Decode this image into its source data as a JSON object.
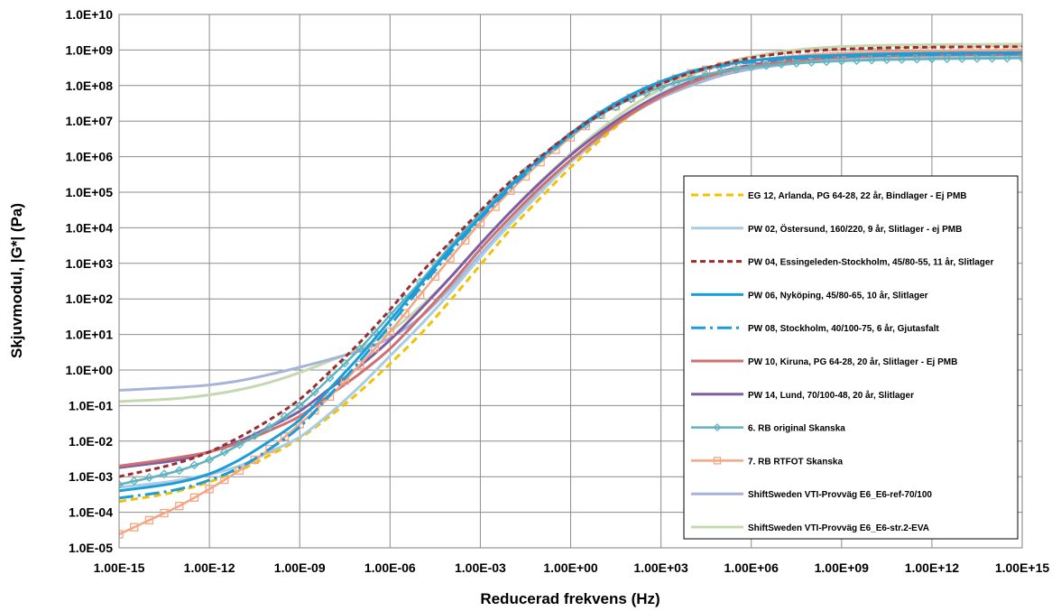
{
  "chart_data": {
    "type": "line",
    "xlabel": "Reducerad frekvens (Hz)",
    "ylabel": "Skjuvmodul, |G*| (Pa)",
    "x_scale": "log",
    "y_scale": "log",
    "xlim": [
      1e-15,
      1000000000000000.0
    ],
    "ylim": [
      1e-05,
      10000000000.0
    ],
    "grid": true,
    "legend_position": "right",
    "x_ticks": [
      "1.00E-15",
      "1.00E-12",
      "1.00E-09",
      "1.00E-06",
      "1.00E-03",
      "1.00E+00",
      "1.00E+03",
      "1.00E+06",
      "1.00E+09",
      "1.00E+12",
      "1.00E+15"
    ],
    "y_ticks": [
      "1.0E+10",
      "1.0E+09",
      "1.0E+08",
      "1.0E+07",
      "1.0E+06",
      "1.0E+05",
      "1.0E+04",
      "1.0E+03",
      "1.0E+02",
      "1.0E+01",
      "1.0E+00",
      "1.0E-01",
      "1.0E-02",
      "1.0E-03",
      "1.0E-04",
      "1.0E-05"
    ],
    "series": [
      {
        "name": "EG 12, Arlanda, PG 64-28, 22 år, Bindlager - Ej PMB",
        "color": "#F2C200",
        "dash": "8,5",
        "width": 3,
        "marker": "none",
        "x": [
          1e-15,
          1e-13,
          1e-11,
          1e-10,
          1e-09,
          1e-08,
          1e-07,
          1e-06,
          1e-05,
          0.0001,
          0.001,
          0.01,
          0.1,
          1,
          10,
          100,
          1000,
          10000.0,
          100000.0,
          1000000.0,
          10000000.0,
          100000000.0,
          1000000000.0,
          10000000000.0,
          100000000000.0,
          1000000000000.0,
          10000000000000.0,
          100000000000000.0,
          1000000000000000.0
        ],
        "y": [
          0.0002,
          0.0004,
          0.0015,
          0.004,
          0.012,
          0.05,
          0.25,
          1.5,
          10,
          90,
          900,
          9000,
          70000.0,
          500000.0,
          3000000.0,
          15000000.0,
          50000000.0,
          120000000.0,
          230000000.0,
          350000000.0,
          480000000.0,
          600000000.0,
          700000000.0,
          780000000.0,
          830000000.0,
          870000000.0,
          900000000.0,
          920000000.0,
          930000000.0
        ]
      },
      {
        "name": "PW 02, Östersund, 160/220, 9 år, Slitlager - ej PMB",
        "color": "#A9CCE3",
        "dash": "",
        "width": 3,
        "marker": "none",
        "x": [
          1e-15,
          1e-13,
          1e-11,
          1e-10,
          1e-09,
          1e-08,
          1e-07,
          1e-06,
          1e-05,
          0.0001,
          0.001,
          0.01,
          0.1,
          1,
          10,
          100,
          1000,
          10000.0,
          100000.0,
          1000000.0,
          10000000.0,
          100000000.0,
          1000000000.0,
          10000000000.0,
          100000000000.0,
          1000000000000.0,
          10000000000000.0,
          100000000000000.0,
          1000000000000000.0
        ],
        "y": [
          0.0005,
          0.0008,
          0.002,
          0.005,
          0.013,
          0.06,
          0.35,
          2.5,
          18,
          150,
          1500,
          13000.0,
          100000.0,
          700000.0,
          4000000.0,
          18000000.0,
          60000000.0,
          140000000.0,
          250000000.0,
          360000000.0,
          460000000.0,
          540000000.0,
          600000000.0,
          640000000.0,
          670000000.0,
          690000000.0,
          700000000.0,
          710000000.0,
          720000000.0
        ]
      },
      {
        "name": "PW 04, Essingeleden-Stockholm, 45/80-55, 11 år, Slitlager",
        "color": "#9B2D30",
        "dash": "6,4",
        "width": 3,
        "marker": "none",
        "x": [
          1e-15,
          1e-13,
          1e-12,
          1e-11,
          1e-10,
          1e-09,
          1e-08,
          1e-07,
          1e-06,
          1e-05,
          0.0001,
          0.001,
          0.01,
          0.1,
          1,
          10,
          100,
          1000,
          10000.0,
          100000.0,
          1000000.0,
          10000000.0,
          100000000.0,
          1000000000.0,
          10000000000.0,
          100000000000.0,
          1000000000000.0,
          10000000000000.0,
          100000000000000.0,
          1000000000000000.0
        ],
        "y": [
          0.001,
          0.0025,
          0.005,
          0.013,
          0.04,
          0.15,
          0.9,
          6,
          50,
          500,
          4000,
          30000.0,
          200000.0,
          1000000.0,
          4500000.0,
          16000000.0,
          45000000.0,
          110000000.0,
          230000000.0,
          400000000.0,
          600000000.0,
          800000000.0,
          950000000.0,
          1050000000.0,
          1120000000.0,
          1170000000.0,
          1200000000.0,
          1220000000.0,
          1230000000.0,
          1240000000.0
        ]
      },
      {
        "name": "PW 06, Nyköping, 45/80-65, 10 år, Slitlager",
        "color": "#1B9DD9",
        "dash": "",
        "width": 3,
        "marker": "none",
        "x": [
          1e-15,
          1e-13,
          1e-12,
          1e-11,
          1e-10,
          1e-09,
          1e-08,
          1e-07,
          1e-06,
          1e-05,
          0.0001,
          0.001,
          0.01,
          0.1,
          1,
          10,
          100,
          1000,
          10000.0,
          100000.0,
          1000000.0,
          10000000.0,
          100000000.0,
          1000000000.0,
          10000000000.0,
          100000000000.0,
          1000000000000.0,
          10000000000000.0,
          100000000000000.0,
          1000000000000000.0
        ],
        "y": [
          0.0004,
          0.0007,
          0.0012,
          0.003,
          0.01,
          0.04,
          0.3,
          2.5,
          25,
          250,
          2500,
          20000.0,
          150000.0,
          900000.0,
          4500000.0,
          18000000.0,
          55000000.0,
          130000000.0,
          250000000.0,
          380000000.0,
          500000000.0,
          600000000.0,
          670000000.0,
          720000000.0,
          760000000.0,
          790000000.0,
          810000000.0,
          820000000.0,
          830000000.0,
          840000000.0
        ]
      },
      {
        "name": "PW 08, Stockholm, 40/100-75, 6 år, Gjutasfalt",
        "color": "#1B9DD9",
        "dash": "16,5,3,5",
        "width": 3,
        "marker": "none",
        "x": [
          1e-15,
          1e-13,
          1e-12,
          1e-11,
          1e-10,
          1e-09,
          1e-08,
          1e-07,
          1e-06,
          1e-05,
          0.0001,
          0.001,
          0.01,
          0.1,
          1,
          10,
          100,
          1000,
          10000.0,
          100000.0,
          1000000.0,
          10000000.0,
          100000000.0,
          1000000000.0,
          10000000000.0,
          100000000000.0,
          1000000000000.0,
          10000000000000.0,
          100000000000000.0,
          1000000000000000.0
        ],
        "y": [
          0.00025,
          0.00045,
          0.0008,
          0.0018,
          0.006,
          0.025,
          0.2,
          1.8,
          18,
          200,
          2000,
          18000.0,
          130000.0,
          800000.0,
          4000000.0,
          16000000.0,
          50000000.0,
          120000000.0,
          230000000.0,
          350000000.0,
          460000000.0,
          550000000.0,
          610000000.0,
          660000000.0,
          700000000.0,
          730000000.0,
          750000000.0,
          770000000.0,
          780000000.0,
          790000000.0
        ]
      },
      {
        "name": "PW 10, Kiruna, PG 64-28, 20 år, Slitlager - Ej PMB",
        "color": "#CD7070",
        "dash": "",
        "width": 3,
        "marker": "none",
        "x": [
          1e-15,
          1e-14,
          1e-13,
          1e-12,
          1e-11,
          1e-10,
          1e-09,
          1e-08,
          1e-07,
          1e-06,
          1e-05,
          0.0001,
          0.001,
          0.01,
          0.1,
          1,
          10,
          100,
          1000,
          10000.0,
          100000.0,
          1000000.0,
          10000000.0,
          100000000.0,
          1000000000.0,
          10000000000.0,
          100000000000.0,
          1000000000000.0,
          10000000000000.0,
          100000000000000.0,
          1000000000000000.0
        ],
        "y": [
          0.002,
          0.0026,
          0.0035,
          0.005,
          0.009,
          0.02,
          0.05,
          0.2,
          0.8,
          4,
          30,
          250,
          2500,
          20000.0,
          140000.0,
          800000.0,
          4000000.0,
          16000000.0,
          50000000.0,
          120000000.0,
          230000000.0,
          350000000.0,
          460000000.0,
          550000000.0,
          620000000.0,
          670000000.0,
          700000000.0,
          720000000.0,
          730000000.0,
          740000000.0,
          750000000.0
        ]
      },
      {
        "name": "PW 14, Lund, 70/100-48, 20 år, Slitlager",
        "color": "#7E5DA3",
        "dash": "",
        "width": 3,
        "marker": "none",
        "x": [
          1e-15,
          1e-14,
          1e-13,
          1e-12,
          1e-11,
          1e-10,
          1e-09,
          1e-08,
          1e-07,
          1e-06,
          1e-05,
          0.0001,
          0.001,
          0.01,
          0.1,
          1,
          10,
          100,
          1000,
          10000.0,
          100000.0,
          1000000.0,
          10000000.0,
          100000000.0,
          1000000000.0,
          10000000000.0,
          100000000000.0,
          1000000000000.0,
          10000000000000.0,
          100000000000000.0,
          1000000000000000.0
        ],
        "y": [
          0.0018,
          0.0023,
          0.003,
          0.005,
          0.01,
          0.025,
          0.07,
          0.3,
          1.3,
          7,
          50,
          400,
          3500,
          28000.0,
          190000.0,
          1100000.0,
          5000000.0,
          19000000.0,
          55000000.0,
          130000000.0,
          250000000.0,
          380000000.0,
          500000000.0,
          600000000.0,
          680000000.0,
          740000000.0,
          780000000.0,
          810000000.0,
          830000000.0,
          840000000.0,
          850000000.0
        ]
      },
      {
        "name": "6. RB original Skanska",
        "color": "#5FB3BE",
        "dash": "",
        "width": 2.5,
        "marker": "diamond",
        "x": [
          1e-15,
          1e-13,
          1e-12,
          1e-11,
          1e-10,
          1e-09,
          1e-08,
          1e-07,
          1e-06,
          1e-05,
          0.0001,
          0.001,
          0.01,
          0.1,
          1,
          10,
          100,
          1000,
          10000.0,
          100000.0,
          1000000.0,
          10000000.0,
          100000000.0,
          1000000000.0,
          10000000000.0,
          100000000000.0,
          1000000000000.0,
          10000000000000.0,
          100000000000000.0,
          1000000000000000.0
        ],
        "y": [
          0.0006,
          0.0015,
          0.003,
          0.008,
          0.025,
          0.1,
          0.6,
          4,
          35,
          300,
          3000,
          25000.0,
          170000.0,
          900000.0,
          4000000.0,
          15000000.0,
          42000000.0,
          90000000.0,
          160000000.0,
          250000000.0,
          330000000.0,
          400000000.0,
          450000000.0,
          490000000.0,
          520000000.0,
          540000000.0,
          560000000.0,
          570000000.0,
          580000000.0,
          590000000.0
        ]
      },
      {
        "name": "7. RB RTFOT Skanska",
        "color": "#F4A582",
        "dash": "",
        "width": 2.5,
        "marker": "square",
        "x": [
          1e-15,
          1e-14,
          1e-13,
          1e-12,
          1e-11,
          1e-10,
          1e-09,
          1e-08,
          1e-07,
          1e-06,
          1e-05,
          0.0001,
          0.001,
          0.01,
          0.1,
          1,
          10,
          100,
          1000,
          10000.0,
          100000.0,
          1000000.0,
          10000000.0,
          100000000.0,
          1000000000.0,
          10000000000.0,
          100000000000.0,
          1000000000000.0,
          10000000000000.0,
          100000000000000.0,
          1000000000000000.0
        ],
        "y": [
          2.4e-05,
          6e-05,
          0.00015,
          0.00045,
          0.0015,
          0.006,
          0.03,
          0.18,
          1.4,
          12,
          130,
          1400,
          14000.0,
          110000.0,
          700000.0,
          3500000.0,
          15000000.0,
          45000000.0,
          110000000.0,
          220000000.0,
          350000000.0,
          500000000.0,
          630000000.0,
          740000000.0,
          820000000.0,
          880000000.0,
          920000000.0,
          950000000.0,
          970000000.0,
          990000000.0,
          1000000000.0
        ]
      },
      {
        "name": "ShiftSweden VTI-Provväg E6_E6-ref-70/100",
        "color": "#A6B4D8",
        "dash": "",
        "width": 3,
        "marker": "none",
        "x": [
          1e-15,
          1e-13,
          1e-12,
          1e-11,
          1e-10,
          1e-09,
          1e-08,
          1e-07,
          1e-06,
          1e-05,
          0.0001,
          0.001,
          0.01,
          0.1,
          1,
          10,
          100,
          1000,
          10000.0,
          100000.0,
          1000000.0,
          10000000.0,
          100000000.0,
          1000000000.0,
          10000000000.0,
          100000000000.0,
          1000000000000.0,
          10000000000000.0,
          100000000000000.0,
          1000000000000000.0
        ],
        "y": [
          0.27,
          0.33,
          0.38,
          0.5,
          0.75,
          1.2,
          2,
          3.5,
          8,
          30,
          200,
          1800,
          15000.0,
          110000.0,
          700000.0,
          3500000.0,
          15000000.0,
          45000000.0,
          100000000.0,
          190000000.0,
          290000000.0,
          380000000.0,
          460000000.0,
          530000000.0,
          580000000.0,
          620000000.0,
          650000000.0,
          670000000.0,
          680000000.0,
          690000000.0
        ]
      },
      {
        "name": "ShiftSweden VTI-Provväg E6_E6-str.2-EVA",
        "color": "#C5D9B0",
        "dash": "",
        "width": 3,
        "marker": "none",
        "x": [
          1e-15,
          1e-13,
          1e-12,
          1e-11,
          1e-10,
          1e-09,
          1e-08,
          1e-07,
          1e-06,
          1e-05,
          0.0001,
          0.001,
          0.01,
          0.1,
          1,
          10,
          100,
          1000,
          10000.0,
          100000.0,
          1000000.0,
          10000000.0,
          100000000.0,
          1000000000.0,
          10000000000.0,
          100000000000.0,
          1000000000000.0,
          10000000000000.0,
          100000000000000.0,
          1000000000000000.0
        ],
        "y": [
          0.13,
          0.16,
          0.2,
          0.28,
          0.45,
          0.85,
          1.8,
          4,
          12,
          60,
          400,
          3500,
          28000.0,
          200000.0,
          1200000.0,
          6000000.0,
          25000000.0,
          80000000.0,
          200000000.0,
          400000000.0,
          650000000.0,
          900000000.0,
          1100000000.0,
          1250000000.0,
          1330000000.0,
          1380000000.0,
          1410000000.0,
          1430000000.0,
          1440000000.0,
          1450000000.0
        ]
      }
    ]
  }
}
